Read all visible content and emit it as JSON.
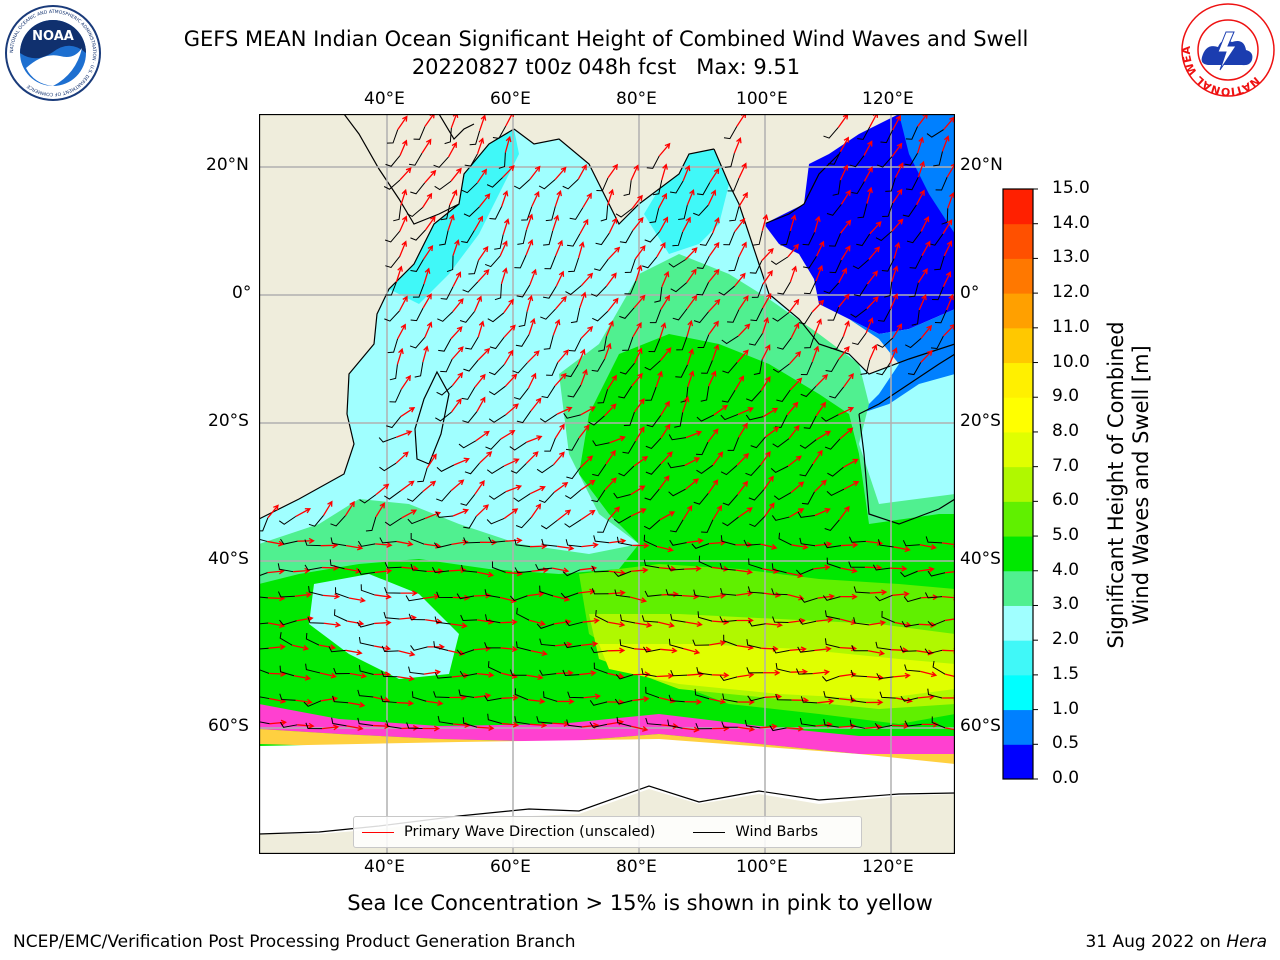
{
  "header": {
    "title_line1": "GEFS MEAN Indian Ocean Significant Height of Combined Wind Waves and Swell",
    "title_line2": "20220827 t00z 048h fcst   Max: 9.51"
  },
  "logos": {
    "noaa": {
      "text": "NOAA",
      "ring_text": "NATIONAL OCEANIC AND ATMOSPHERIC ADMINISTRATION · U.S. DEPARTMENT OF COMMERCE"
    },
    "nws": {
      "ring_text": "NATIONAL WEATHER SERVICE"
    }
  },
  "map": {
    "lon_ticks_top": [
      "40°E",
      "60°E",
      "80°E",
      "100°E",
      "120°E"
    ],
    "lon_ticks_bottom": [
      "40°E",
      "60°E",
      "80°E",
      "100°E",
      "120°E"
    ],
    "lat_ticks_left": [
      "20°N",
      "0°",
      "20°S",
      "40°S",
      "60°S"
    ],
    "lat_ticks_right": [
      "20°N",
      "0°",
      "20°S",
      "40°S",
      "60°S"
    ],
    "lon_values": [
      40,
      60,
      80,
      100,
      120
    ],
    "lat_values": [
      20,
      0,
      -20,
      -40,
      -60
    ],
    "extent": {
      "lon_min": 20,
      "lon_max": 130,
      "lat_min": -70,
      "lat_max": 27
    },
    "land_color": "#efeddc",
    "grid_color": "#b0b0b0"
  },
  "legend": {
    "wave_label": "Primary Wave Direction (unscaled)",
    "wave_color": "#ff0000",
    "barb_label": "Wind Barbs",
    "barb_color": "#000000"
  },
  "colorbar": {
    "label_line1": "Significant Height of Combined",
    "label_line2": "Wind Waves and Swell [m]",
    "ticks": [
      "15.0",
      "14.0",
      "13.0",
      "12.0",
      "11.0",
      "10.0",
      "9.0",
      "8.0",
      "7.0",
      "6.0",
      "5.0",
      "4.0",
      "3.0",
      "2.0",
      "1.5",
      "1.0",
      "0.5",
      "0.0"
    ],
    "levels": [
      0,
      0.5,
      1.0,
      1.5,
      2.0,
      3.0,
      4.0,
      5.0,
      6.0,
      7.0,
      8.0,
      9.0,
      10.0,
      11.0,
      12.0,
      13.0,
      14.0,
      15.0
    ],
    "colors": [
      "#0000ff",
      "#0080ff",
      "#00ffff",
      "#40f8f8",
      "#a0ffff",
      "#50f090",
      "#00e800",
      "#60f000",
      "#b0f800",
      "#e0ff00",
      "#ffff00",
      "#fff000",
      "#ffc800",
      "#ffa000",
      "#ff7800",
      "#ff5000",
      "#ff2000"
    ]
  },
  "caption": "Sea Ice Concentration > 15% is shown in pink to yellow",
  "footer": {
    "left": "NCEP/EMC/Verification Post Processing Product Generation Branch",
    "date": "31 Aug 2022 on ",
    "machine": "Hera"
  }
}
